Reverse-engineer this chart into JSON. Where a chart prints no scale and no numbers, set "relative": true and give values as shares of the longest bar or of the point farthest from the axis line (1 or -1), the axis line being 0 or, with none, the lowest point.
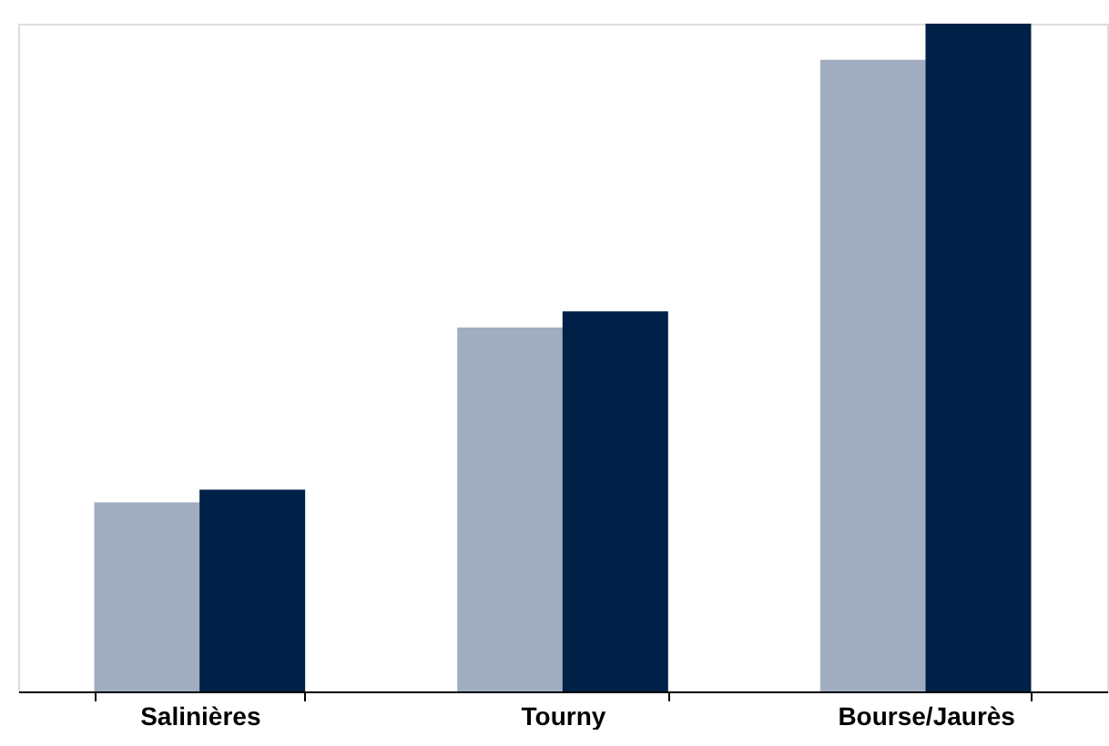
{
  "chart_data": {
    "type": "bar",
    "relative": true,
    "categories": [
      "Salinières",
      "Tourny",
      "Bourse/Jaurès"
    ],
    "series": [
      {
        "color": "#a0acc0",
        "values": [
          0.283,
          0.545,
          0.946
        ]
      },
      {
        "color": "#002147",
        "values": [
          0.302,
          0.569,
          1.0
        ]
      }
    ]
  }
}
